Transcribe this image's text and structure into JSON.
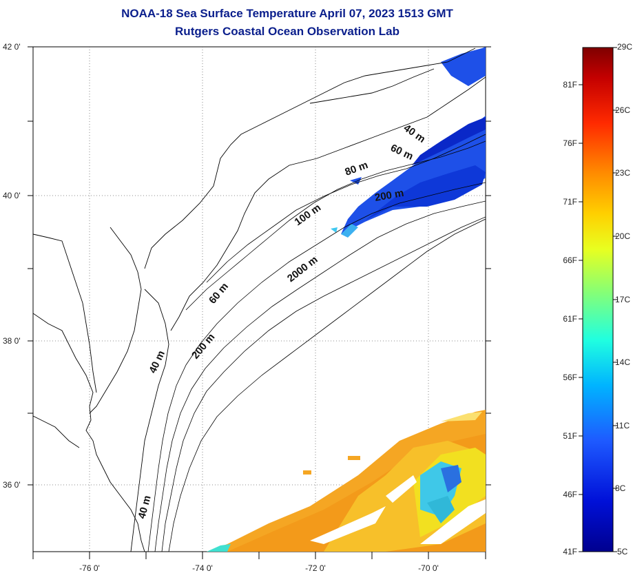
{
  "title": {
    "line1": "NOAA-18 Sea Surface Temperature April 07, 2023 1513 GMT",
    "line2": "Rutgers Coastal Ocean Observation Lab"
  },
  "map": {
    "lat_ticks": [
      {
        "label": "42 0'",
        "lat": 42
      },
      {
        "label": "40 0'",
        "lat": 40
      },
      {
        "label": "38 0'",
        "lat": 38
      },
      {
        "label": "36 0'",
        "lat": 36
      }
    ],
    "lon_ticks": [
      {
        "label": "-76 0'",
        "lon": -76
      },
      {
        "label": "-74 0'",
        "lon": -74
      },
      {
        "label": "-72 0'",
        "lon": -72
      },
      {
        "label": "-70 0'",
        "lon": -70
      }
    ],
    "contour_labels": [
      "40 m",
      "60 m",
      "80 m",
      "200 m",
      "100 m",
      "2000 m",
      "60 m",
      "200 m",
      "40 m",
      "40 m"
    ]
  },
  "colorbar": {
    "celsius_labels": [
      "29C",
      "26C",
      "23C",
      "20C",
      "17C",
      "14C",
      "11C",
      "8C",
      "5C"
    ],
    "fahrenheit_labels": [
      "81F",
      "76F",
      "71F",
      "66F",
      "61F",
      "56F",
      "51F",
      "46F",
      "41F"
    ],
    "colors": [
      "#7f0000",
      "#c40000",
      "#ff2a00",
      "#ff8c00",
      "#ffd000",
      "#e8ff20",
      "#8cff70",
      "#20ffe0",
      "#00b4ff",
      "#1e5aff",
      "#0010d8",
      "#00008f"
    ]
  }
}
